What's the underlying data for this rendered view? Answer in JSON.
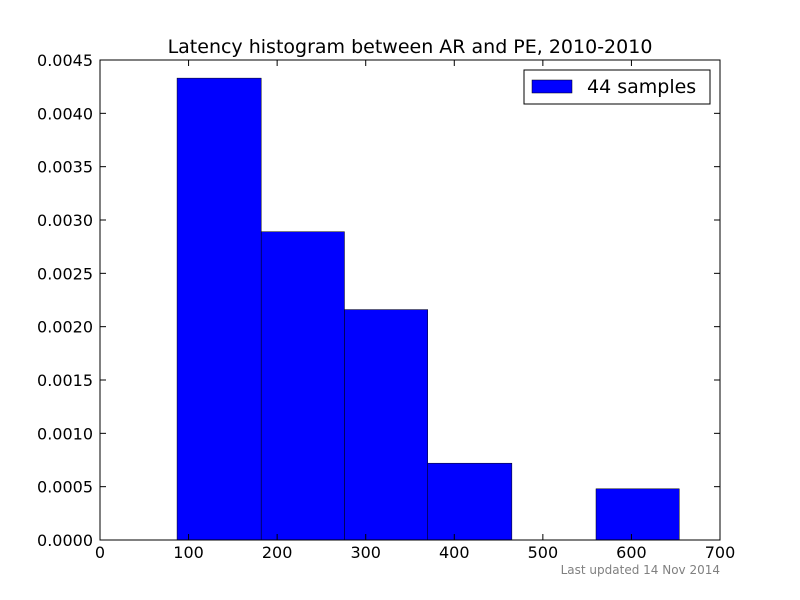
{
  "chart_data": {
    "type": "bar",
    "title": "Latency histogram between AR and PE, 2010-2010",
    "xlabel": "",
    "ylabel": "",
    "xlim": [
      0,
      700
    ],
    "ylim": [
      0,
      0.0045
    ],
    "xticks": [
      0,
      100,
      200,
      300,
      400,
      500,
      600,
      700
    ],
    "xtick_labels": [
      "0",
      "100",
      "200",
      "300",
      "400",
      "500",
      "600",
      "700"
    ],
    "yticks": [
      0,
      0.0005,
      0.001,
      0.0015,
      0.002,
      0.0025,
      0.003,
      0.0035,
      0.004,
      0.0045
    ],
    "ytick_labels": [
      "0.0000",
      "0.0005",
      "0.0010",
      "0.0015",
      "0.0020",
      "0.0025",
      "0.0030",
      "0.0035",
      "0.0040",
      "0.0045"
    ],
    "bins": [
      {
        "x0": 87,
        "x1": 182,
        "value": 0.00433
      },
      {
        "x0": 182,
        "x1": 276,
        "value": 0.00289
      },
      {
        "x0": 276,
        "x1": 370,
        "value": 0.00216
      },
      {
        "x0": 370,
        "x1": 465,
        "value": 0.00072
      },
      {
        "x0": 465,
        "x1": 560,
        "value": 0
      },
      {
        "x0": 560,
        "x1": 654,
        "value": 0.00048
      }
    ],
    "series": [
      {
        "name": "44 samples",
        "color": "#0000ff"
      }
    ],
    "grid": false,
    "legend_position": "top-right",
    "footnote": "Last updated 14 Nov 2014"
  }
}
